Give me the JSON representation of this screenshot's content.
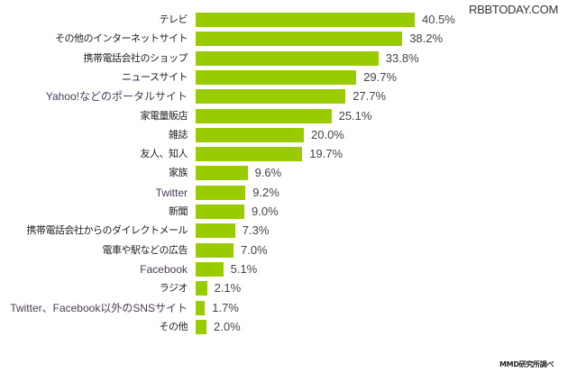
{
  "watermark": "RBBTODAY.COM",
  "footnote": "MMD研究所調べ",
  "style": {
    "bar_color": "#99cc00",
    "label_color": "#222222",
    "value_color": "#444444"
  },
  "chart_data": {
    "type": "bar",
    "orientation": "horizontal",
    "title": "",
    "xlabel": "",
    "ylabel": "",
    "unit": "%",
    "xlim": [
      0,
      45
    ],
    "grid": false,
    "legend": null,
    "categories": [
      "テレビ",
      "その他のインターネットサイト",
      "携帯電話会社のショップ",
      "ニュースサイト",
      "Yahoo!などのポータルサイト",
      "家電量販店",
      "雑誌",
      "友人、知人",
      "家族",
      "Twitter",
      "新聞",
      "携帯電話会社からのダイレクトメール",
      "電車や駅などの広告",
      "Facebook",
      "ラジオ",
      "Twitter、Facebook以外のSNSサイト",
      "その他"
    ],
    "values": [
      40.5,
      38.2,
      33.8,
      29.7,
      27.7,
      25.1,
      20.0,
      19.7,
      9.6,
      9.2,
      9.0,
      7.3,
      7.0,
      5.1,
      2.1,
      1.7,
      2.0
    ],
    "value_labels": [
      "40.5%",
      "38.2%",
      "33.8%",
      "29.7%",
      "27.7%",
      "25.1%",
      "20.0%",
      "19.7%",
      "9.6%",
      "9.2%",
      "9.0%",
      "7.3%",
      "7.0%",
      "5.1%",
      "2.1%",
      "1.7%",
      "2.0%"
    ],
    "latin_labels": [
      4,
      9,
      13,
      15
    ]
  }
}
